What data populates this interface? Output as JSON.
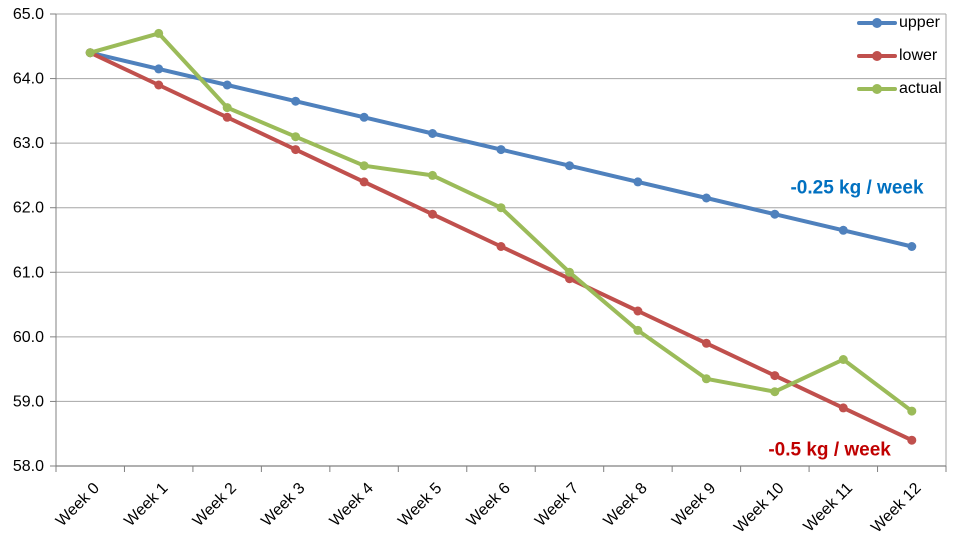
{
  "chart_data": {
    "type": "line",
    "title": "",
    "xlabel": "",
    "ylabel": "",
    "categories": [
      "Week 0",
      "Week 1",
      "Week 2",
      "Week 3",
      "Week 4",
      "Week 5",
      "Week 6",
      "Week 7",
      "Week 8",
      "Week 9",
      "Week 10",
      "Week 11",
      "Week 12"
    ],
    "y_axis": {
      "min": 58.0,
      "max": 65.0,
      "step": 1.0,
      "tick_labels": [
        "58.0",
        "59.0",
        "60.0",
        "61.0",
        "62.0",
        "63.0",
        "64.0",
        "65.0"
      ]
    },
    "x_axis": {
      "label_rotation_deg": 45
    },
    "grid": true,
    "legend_position": "top-right",
    "series": [
      {
        "name": "upper",
        "color": "#4F81BD",
        "values": [
          64.4,
          64.15,
          63.9,
          63.65,
          63.4,
          63.15,
          62.9,
          62.65,
          62.4,
          62.15,
          61.9,
          61.65,
          61.4
        ]
      },
      {
        "name": "lower",
        "color": "#C0504D",
        "values": [
          64.4,
          63.9,
          63.4,
          62.9,
          62.4,
          61.9,
          61.4,
          60.9,
          60.4,
          59.9,
          59.4,
          58.9,
          58.4
        ]
      },
      {
        "name": "actual",
        "color": "#9BBB59",
        "values": [
          64.4,
          64.7,
          63.55,
          63.1,
          62.65,
          62.5,
          62.0,
          61.0,
          60.1,
          59.35,
          59.15,
          59.65,
          58.85
        ]
      }
    ],
    "annotations": [
      {
        "text": "-0.25 kg / week",
        "color": "#0070C0",
        "week": 11.2,
        "value": 62.3
      },
      {
        "text": "-0.5 kg / week",
        "color": "#C00000",
        "week": 10.8,
        "value": 58.25
      }
    ],
    "colors": {
      "gridline": "#A6A6A6",
      "axis": "#808080",
      "tick_text": "#000000",
      "background": "#FFFFFF"
    }
  }
}
